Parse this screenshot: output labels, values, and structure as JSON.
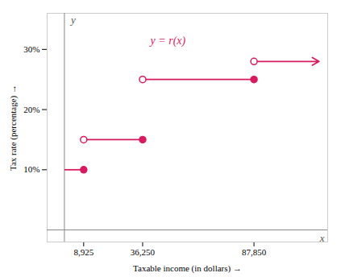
{
  "chart_data": {
    "type": "step",
    "xlabel": "Taxable income (in dollars)",
    "ylabel": "Tax rate (percentage)",
    "color": "#d81b60",
    "segments": [
      {
        "x_start": 0,
        "x_end": 8925,
        "y": 10,
        "open_left": false,
        "arrow": false
      },
      {
        "x_start": 8925,
        "x_end": 36250,
        "y": 15,
        "open_left": true,
        "arrow": false
      },
      {
        "x_start": 36250,
        "x_end": 87850,
        "y": 25,
        "open_left": true,
        "arrow": false
      },
      {
        "x_start": 87850,
        "x_end": 118000,
        "y": 28,
        "open_left": true,
        "arrow": true
      }
    ],
    "xlim": [
      -8000,
      122000
    ],
    "ylim": [
      -2,
      36
    ],
    "xticks": [
      {
        "value": 8925,
        "label": "8,925"
      },
      {
        "value": 36250,
        "label": "36,250"
      },
      {
        "value": 87850,
        "label": "87,850"
      }
    ],
    "yticks": [
      {
        "value": 10,
        "label": "10%"
      },
      {
        "value": 20,
        "label": "20%"
      },
      {
        "value": 30,
        "label": "30%"
      }
    ],
    "annotations": [
      {
        "text": "y = r(x)",
        "x": 48000,
        "y": 31.5
      },
      {
        "text": "x",
        "axis": "x"
      },
      {
        "text": "y",
        "axis": "y"
      }
    ]
  }
}
